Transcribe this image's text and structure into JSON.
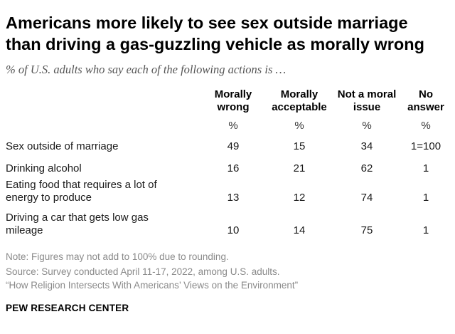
{
  "chart_data": {
    "type": "table",
    "title": "Americans more likely to see sex outside marriage than driving a gas-guzzling vehicle as morally wrong",
    "title_lines": [
      "Americans more likely to see sex outside marriage",
      "than driving a gas-guzzling vehicle as morally wrong"
    ],
    "subtitle": "% of U.S. adults who say each of the following actions is …",
    "columns": [
      {
        "lines": [
          "Morally",
          "wrong"
        ],
        "unit": "%"
      },
      {
        "lines": [
          "Morally",
          "acceptable"
        ],
        "unit": "%"
      },
      {
        "lines": [
          "Not a moral",
          "issue"
        ],
        "unit": "%"
      },
      {
        "lines": [
          "No",
          "answer"
        ],
        "unit": "%"
      }
    ],
    "rows": [
      {
        "lines": [
          "Sex outside of marriage"
        ],
        "values": [
          "49",
          "15",
          "34",
          "1=100"
        ]
      },
      {
        "lines": [
          "Drinking alcohol"
        ],
        "values": [
          "16",
          "21",
          "62",
          "1"
        ]
      },
      {
        "lines": [
          "Eating food that requires a lot of",
          "energy to produce"
        ],
        "values": [
          "13",
          "12",
          "74",
          "1"
        ]
      },
      {
        "lines": [
          "Driving a car that gets low gas",
          "mileage"
        ],
        "values": [
          "10",
          "14",
          "75",
          "1"
        ]
      }
    ]
  },
  "notes": {
    "note": "Note: Figures may not add to 100% due to rounding.",
    "source": "Source: Survey conducted April 11-17, 2022, among U.S. adults.",
    "report": "“How Religion Intersects With Americans’ Views on the Environment”"
  },
  "branding": {
    "org": "PEW RESEARCH CENTER"
  }
}
